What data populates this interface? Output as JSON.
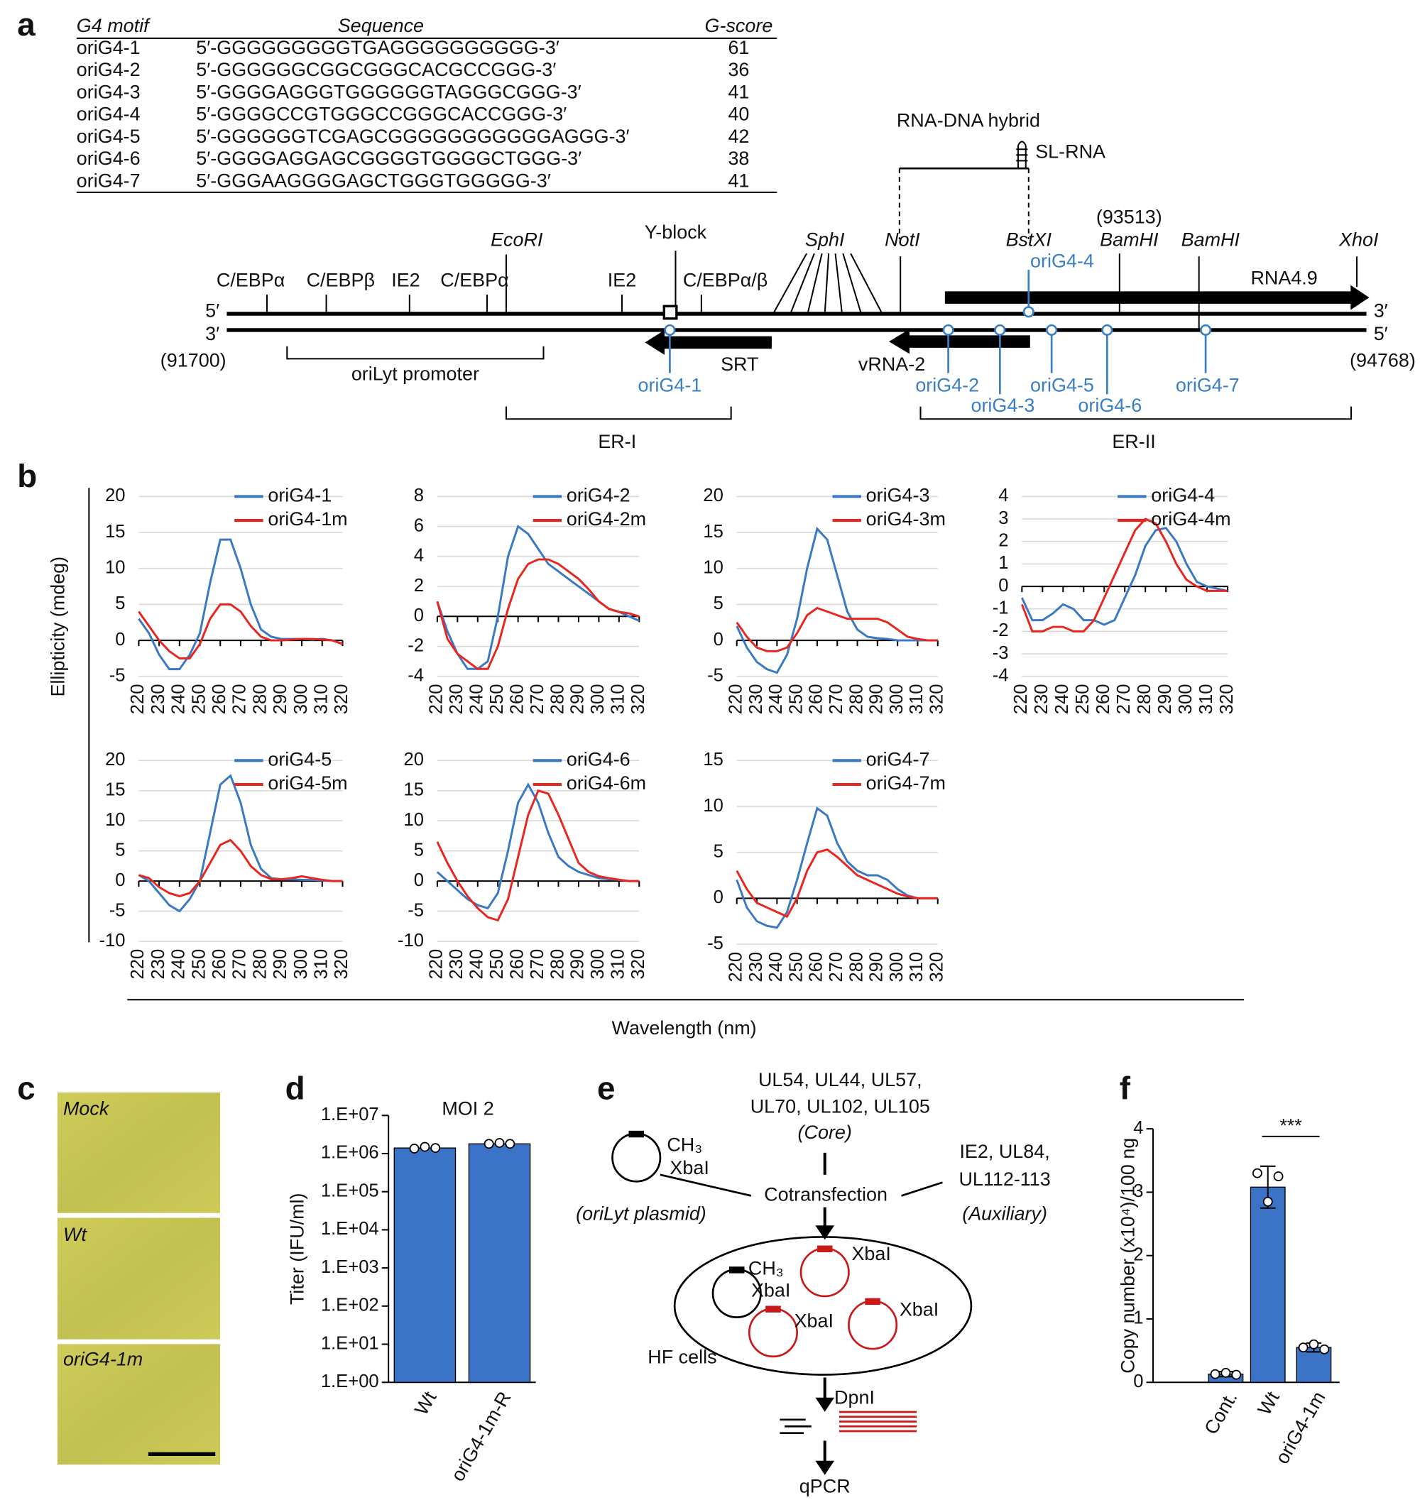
{
  "panel_labels": [
    "a",
    "b",
    "c",
    "d",
    "e",
    "f"
  ],
  "table": {
    "header": [
      "G4 motif",
      "Sequence",
      "G-score"
    ],
    "rows": [
      [
        "oriG4-1",
        "5′-GGGGGGGGGTGAGGGGGGGGGG-3′",
        "61"
      ],
      [
        "oriG4-2",
        "5′-GGGGGGCGGCGGGCACGCCGGG-3′",
        "36"
      ],
      [
        "oriG4-3",
        "5′-GGGGAGGGTGGGGGGTAGGGCGGG-3′",
        "41"
      ],
      [
        "oriG4-4",
        "5′-GGGGCCGTGGGCCGGGCACCGGG-3′",
        "40"
      ],
      [
        "oriG4-5",
        "5′-GGGGGGTCGAGCGGGGGGGGGGGAGGG-3′",
        "42"
      ],
      [
        "oriG4-6",
        "5′-GGGGAGGAGCGGGGTGGGGCTGGG-3′",
        "38"
      ],
      [
        "oriG4-7",
        "5′-GGGAAGGGGAGCTGGGTGGGGG-3′",
        "41"
      ]
    ]
  },
  "map": {
    "labels": [
      "RNA-DNA hybrid",
      "SL-RNA",
      "(93513)",
      "EcoRI",
      "Y-block",
      "SphI",
      "NotI",
      "BstXI",
      "BamHI",
      "BamHI",
      "XhoI",
      "oriG4-4",
      "C/EBPα",
      "C/EBPβ",
      "IE2",
      "C/EBPα",
      "IE2",
      "C/EBPα/β",
      "RNA4.9",
      "5′",
      "3′",
      "3′",
      "5′",
      "(91700)",
      "(94768)",
      "oriLyt promoter",
      "SRT",
      "vRNA-2",
      "oriG4-1",
      "oriG4-2",
      "oriG4-3",
      "oriG4-5",
      "oriG4-6",
      "oriG4-7",
      "ER-I",
      "ER-II"
    ]
  },
  "panel_b": {
    "y_label": "Ellipticity (mdeg)",
    "x_label": "Wavelength (nm)"
  },
  "panel_c": {
    "labels": [
      "Mock",
      "Wt",
      "oriG4-1m"
    ]
  },
  "panel_e": {
    "labels": [
      "UL54, UL44, UL57,",
      "UL70, UL102, UL105",
      "(Core)",
      "CH₃",
      "XbaI",
      "Cotransfection",
      "IE2, UL84,",
      "UL112-113",
      "(Auxiliary)",
      "(oriLyt plasmid)",
      "CH₃",
      "XbaI",
      "XbaI",
      "XbaI",
      "XbaI",
      "HF cells",
      "DpnI",
      "qPCR"
    ]
  },
  "chart_data": [
    {
      "type": "line",
      "x": [
        220,
        225,
        230,
        235,
        240,
        245,
        250,
        255,
        260,
        265,
        270,
        275,
        280,
        285,
        290,
        295,
        300,
        305,
        310,
        315,
        320
      ],
      "xlim": [
        220,
        320
      ],
      "xticks": [
        220,
        230,
        240,
        250,
        260,
        270,
        280,
        290,
        300,
        310,
        320
      ],
      "ylim": [
        -5,
        20
      ],
      "yticks": [
        20,
        15,
        10,
        5,
        0,
        -5
      ],
      "series": [
        {
          "name": "oriG4-1",
          "color": "#3b78c2",
          "values": [
            3,
            1,
            -2,
            -4,
            -4,
            -2,
            1,
            8,
            14,
            14,
            10,
            5,
            1.5,
            0.5,
            0.2,
            0.2,
            0.2,
            0.1,
            0.2,
            0,
            -0.5
          ]
        },
        {
          "name": "oriG4-1m",
          "color": "#e8261f",
          "values": [
            4,
            2,
            0,
            -1.5,
            -2.5,
            -2.5,
            -0.5,
            3,
            5,
            5,
            4,
            2,
            0.5,
            0,
            0,
            0.1,
            0.2,
            0.2,
            0.1,
            0,
            -0.5
          ]
        }
      ]
    },
    {
      "type": "line",
      "x": [
        220,
        225,
        230,
        235,
        240,
        245,
        250,
        255,
        260,
        265,
        270,
        275,
        280,
        285,
        290,
        295,
        300,
        305,
        310,
        315,
        320
      ],
      "xlim": [
        220,
        320
      ],
      "xticks": [
        220,
        230,
        240,
        250,
        260,
        270,
        280,
        290,
        300,
        310,
        320
      ],
      "ylim": [
        -4,
        8
      ],
      "yticks": [
        8,
        6,
        4,
        2,
        0,
        -2,
        -4
      ],
      "series": [
        {
          "name": "oriG4-2",
          "color": "#3b78c2",
          "values": [
            1,
            -1,
            -2.5,
            -3.5,
            -3.5,
            -3,
            0,
            4,
            6,
            5.5,
            4.5,
            3.5,
            3,
            2.5,
            2,
            1.5,
            1,
            0.5,
            0.3,
            0,
            -0.3
          ]
        },
        {
          "name": "oriG4-2m",
          "color": "#e8261f",
          "values": [
            1,
            -1.5,
            -2.5,
            -3,
            -3.5,
            -3.5,
            -2,
            0.5,
            2.5,
            3.5,
            3.8,
            3.8,
            3.5,
            3,
            2.5,
            1.8,
            1,
            0.5,
            0.3,
            0.2,
            0
          ]
        }
      ]
    },
    {
      "type": "line",
      "x": [
        220,
        225,
        230,
        235,
        240,
        245,
        250,
        255,
        260,
        265,
        270,
        275,
        280,
        285,
        290,
        295,
        300,
        305,
        310,
        315,
        320
      ],
      "xlim": [
        220,
        320
      ],
      "xticks": [
        220,
        230,
        240,
        250,
        260,
        270,
        280,
        290,
        300,
        310,
        320
      ],
      "ylim": [
        -5,
        20
      ],
      "yticks": [
        20,
        15,
        10,
        5,
        0,
        -5
      ],
      "series": [
        {
          "name": "oriG4-3",
          "color": "#3b78c2",
          "values": [
            2,
            -1,
            -3,
            -4,
            -4.5,
            -2,
            3,
            10,
            15.5,
            14,
            9,
            4,
            1.5,
            0.5,
            0.3,
            0.2,
            0,
            0,
            0,
            0,
            0
          ]
        },
        {
          "name": "oriG4-3m",
          "color": "#e8261f",
          "values": [
            2.5,
            0.5,
            -1,
            -1.5,
            -1.5,
            -1,
            1,
            3.5,
            4.5,
            4,
            3.5,
            3,
            3,
            3,
            3,
            2.5,
            1.5,
            0.5,
            0.2,
            0,
            0
          ]
        }
      ]
    },
    {
      "type": "line",
      "x": [
        220,
        225,
        230,
        235,
        240,
        245,
        250,
        255,
        260,
        265,
        270,
        275,
        280,
        285,
        290,
        295,
        300,
        305,
        310,
        315,
        320
      ],
      "xlim": [
        220,
        320
      ],
      "xticks": [
        220,
        230,
        240,
        250,
        260,
        270,
        280,
        290,
        300,
        310,
        320
      ],
      "ylim": [
        -4,
        4
      ],
      "yticks": [
        4,
        3,
        2,
        1,
        0,
        -1,
        -2,
        -3,
        -4
      ],
      "series": [
        {
          "name": "oriG4-4",
          "color": "#3b78c2",
          "values": [
            -0.5,
            -1.5,
            -1.5,
            -1.2,
            -0.8,
            -1,
            -1.5,
            -1.5,
            -1.7,
            -1.5,
            -0.5,
            0.5,
            1.8,
            2.5,
            2.6,
            2,
            1,
            0.2,
            0,
            -0.1,
            -0.2
          ]
        },
        {
          "name": "oriG4-4m",
          "color": "#e8261f",
          "values": [
            -0.8,
            -2,
            -2,
            -1.8,
            -1.8,
            -2,
            -2,
            -1.5,
            -0.5,
            0.5,
            1.5,
            2.5,
            3,
            2.8,
            2,
            1,
            0.3,
            0,
            -0.2,
            -0.2,
            -0.2
          ]
        }
      ]
    },
    {
      "type": "line",
      "x": [
        220,
        225,
        230,
        235,
        240,
        245,
        250,
        255,
        260,
        265,
        270,
        275,
        280,
        285,
        290,
        295,
        300,
        305,
        310,
        315,
        320
      ],
      "xlim": [
        220,
        320
      ],
      "xticks": [
        220,
        230,
        240,
        250,
        260,
        270,
        280,
        290,
        300,
        310,
        320
      ],
      "ylim": [
        -10,
        20
      ],
      "yticks": [
        20,
        15,
        10,
        5,
        0,
        -5,
        -10
      ],
      "series": [
        {
          "name": "oriG4-5",
          "color": "#3b78c2",
          "values": [
            1,
            0,
            -2,
            -4,
            -5,
            -3,
            0,
            8,
            16,
            17.5,
            13,
            6,
            2,
            0.5,
            0.3,
            0.3,
            0.2,
            0.2,
            0.1,
            0,
            0
          ]
        },
        {
          "name": "oriG4-5m",
          "color": "#e8261f",
          "values": [
            1,
            0.5,
            -1,
            -2,
            -2.5,
            -2,
            0,
            3,
            6,
            6.8,
            5,
            2.5,
            1,
            0.3,
            0.3,
            0.5,
            0.8,
            0.5,
            0.2,
            0,
            0
          ]
        }
      ]
    },
    {
      "type": "line",
      "x": [
        220,
        225,
        230,
        235,
        240,
        245,
        250,
        255,
        260,
        265,
        270,
        275,
        280,
        285,
        290,
        295,
        300,
        305,
        310,
        315,
        320
      ],
      "xlim": [
        220,
        320
      ],
      "xticks": [
        220,
        230,
        240,
        250,
        260,
        270,
        280,
        290,
        300,
        310,
        320
      ],
      "ylim": [
        -10,
        20
      ],
      "yticks": [
        20,
        15,
        10,
        5,
        0,
        -5,
        -10
      ],
      "series": [
        {
          "name": "oriG4-6",
          "color": "#3b78c2",
          "values": [
            1.5,
            0,
            -1.5,
            -3,
            -4,
            -4.5,
            -2,
            5,
            13,
            16,
            13,
            8,
            4,
            2.5,
            1.5,
            1,
            0.5,
            0.3,
            0.2,
            0,
            0
          ]
        },
        {
          "name": "oriG4-6m",
          "color": "#e8261f",
          "values": [
            6.5,
            3,
            0,
            -2.5,
            -4.5,
            -6,
            -6.5,
            -3,
            4,
            11,
            15,
            14.5,
            11,
            7,
            3,
            1.5,
            0.8,
            0.5,
            0.2,
            0,
            0
          ]
        }
      ]
    },
    {
      "type": "line",
      "x": [
        220,
        225,
        230,
        235,
        240,
        245,
        250,
        255,
        260,
        265,
        270,
        275,
        280,
        285,
        290,
        295,
        300,
        305,
        310,
        315,
        320
      ],
      "xlim": [
        220,
        320
      ],
      "xticks": [
        220,
        230,
        240,
        250,
        260,
        270,
        280,
        290,
        300,
        310,
        320
      ],
      "ylim": [
        -5,
        15
      ],
      "yticks": [
        15,
        10,
        5,
        0,
        -5
      ],
      "series": [
        {
          "name": "oriG4-7",
          "color": "#3b78c2",
          "values": [
            2,
            -1,
            -2.5,
            -3,
            -3.2,
            -1.5,
            2,
            6,
            9.8,
            9,
            6,
            4,
            3,
            2.5,
            2.5,
            2,
            1,
            0.3,
            0,
            0,
            0
          ]
        },
        {
          "name": "oriG4-7m",
          "color": "#e8261f",
          "values": [
            3,
            1,
            -0.5,
            -1,
            -1.5,
            -2,
            0,
            3,
            5,
            5.3,
            4.5,
            3.5,
            2.5,
            2,
            1.5,
            1,
            0.5,
            0.2,
            0,
            0,
            0
          ]
        }
      ]
    },
    {
      "type": "bar",
      "title": "MOI 2",
      "y_label": "Titer (IFU/ml)",
      "log_scale": true,
      "color": "#3b73c6",
      "categories": [
        "Wt",
        "oriG4-1m-R"
      ],
      "values": [
        1400000,
        1800000
      ],
      "points": [
        [
          1350000,
          1500000,
          1400000
        ],
        [
          1800000,
          1900000,
          1800000
        ]
      ],
      "ylim": [
        1,
        10000000
      ],
      "yticks": [
        {
          "value": 1,
          "label": "1.E+00"
        },
        {
          "value": 10,
          "label": "1.E+01"
        },
        {
          "value": 100,
          "label": "1.E+02"
        },
        {
          "value": 1000,
          "label": "1.E+03"
        },
        {
          "value": 10000,
          "label": "1.E+04"
        },
        {
          "value": 100000,
          "label": "1.E+05"
        },
        {
          "value": 1000000,
          "label": "1.E+06"
        },
        {
          "value": 10000000,
          "label": "1.E+07"
        }
      ]
    },
    {
      "type": "bar",
      "y_label": "Copy number (x10⁴)/100 ng",
      "color": "#3b73c6",
      "categories": [
        "Cont.",
        "Wt",
        "oriG4-1m"
      ],
      "values": [
        0.13,
        3.08,
        0.55
      ],
      "errors": [
        0.04,
        0.33,
        0.07
      ],
      "points": [
        [
          0.13,
          0.15,
          0.12
        ],
        [
          3.3,
          2.85,
          3.25
        ],
        [
          0.55,
          0.6,
          0.52
        ]
      ],
      "ylim": [
        0,
        4
      ],
      "yticks": [
        0,
        1,
        2,
        3,
        4
      ],
      "annotation": "***"
    }
  ]
}
